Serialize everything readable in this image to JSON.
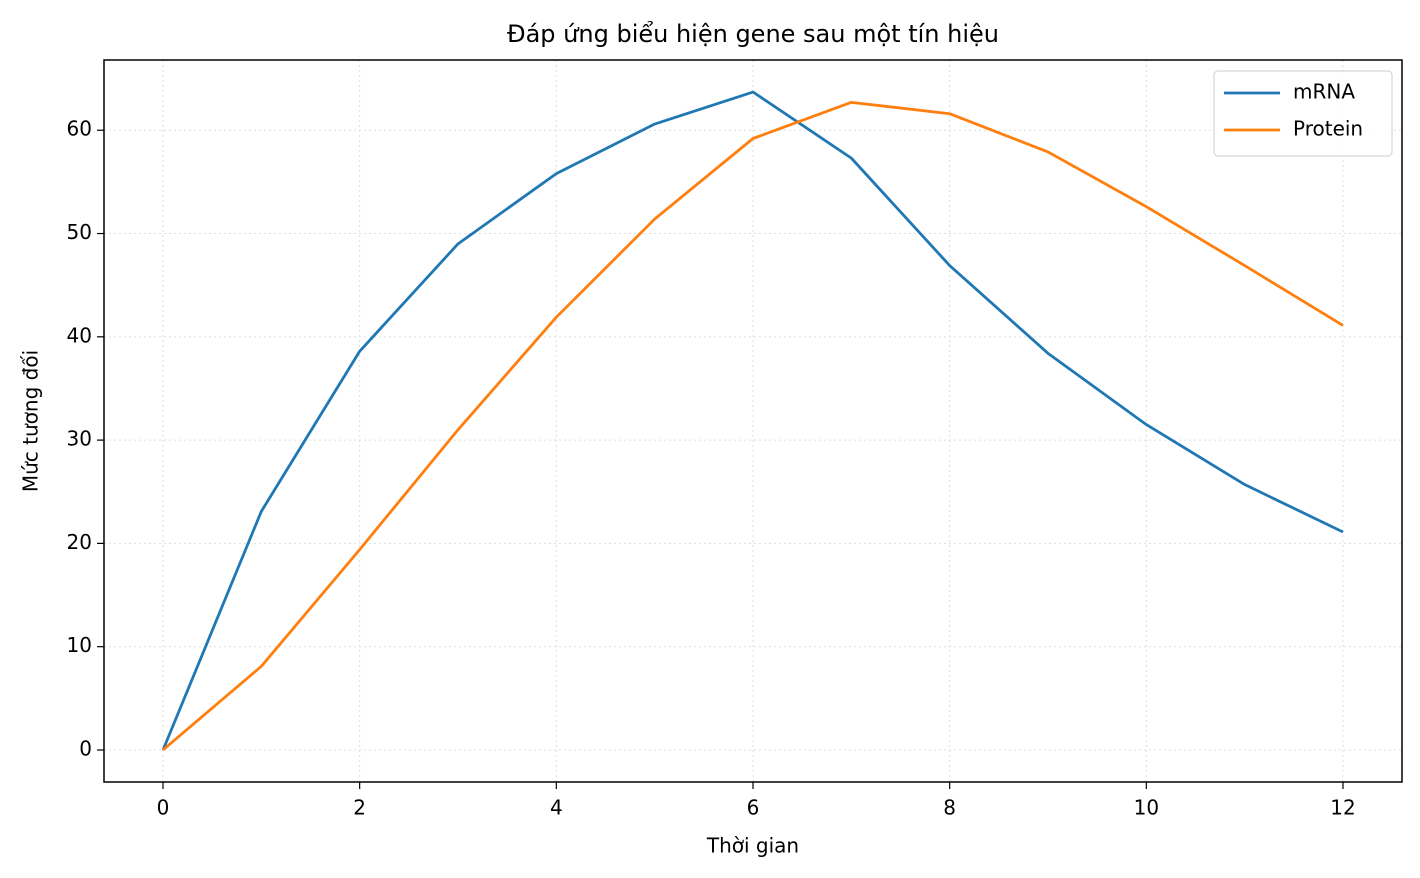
{
  "chart_data": {
    "type": "line",
    "title": "Đáp ứng biểu hiện gene sau một tín hiệu",
    "xlabel": "Thời gian",
    "ylabel": "Mức tương đối",
    "x": [
      0,
      1,
      2,
      3,
      4,
      5,
      6,
      7,
      8,
      9,
      10,
      11,
      12
    ],
    "series": [
      {
        "name": "mRNA",
        "color": "#1f77b4",
        "values": [
          0,
          23.1,
          38.6,
          49.0,
          55.8,
          60.6,
          63.7,
          57.3,
          46.9,
          38.4,
          31.5,
          25.7,
          21.1
        ]
      },
      {
        "name": "Protein",
        "color": "#ff7f0e",
        "values": [
          0,
          8.1,
          19.4,
          31.0,
          41.9,
          51.4,
          59.2,
          62.7,
          61.6,
          57.9,
          52.6,
          46.9,
          41.1
        ]
      }
    ],
    "xlim": [
      -0.6,
      12.6
    ],
    "ylim": [
      -3.1,
      66.8
    ],
    "xticks": [
      0,
      2,
      4,
      6,
      8,
      10,
      12
    ],
    "yticks": [
      0,
      10,
      20,
      30,
      40,
      50,
      60
    ],
    "grid": true,
    "legend": "upper-right"
  }
}
